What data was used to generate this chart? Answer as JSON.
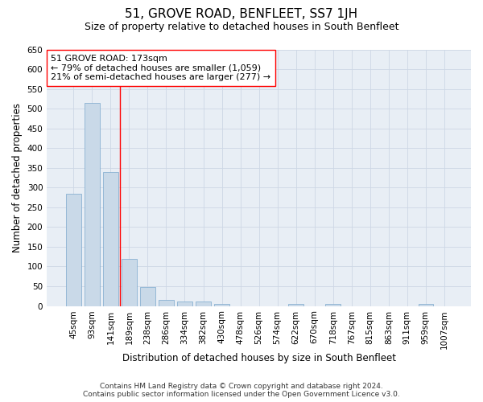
{
  "title": "51, GROVE ROAD, BENFLEET, SS7 1JH",
  "subtitle": "Size of property relative to detached houses in South Benfleet",
  "xlabel": "Distribution of detached houses by size in South Benfleet",
  "ylabel": "Number of detached properties",
  "footer_line1": "Contains HM Land Registry data © Crown copyright and database right 2024.",
  "footer_line2": "Contains public sector information licensed under the Open Government Licence v3.0.",
  "annotation_line1": "51 GROVE ROAD: 173sqm",
  "annotation_line2": "← 79% of detached houses are smaller (1,059)",
  "annotation_line3": "21% of semi-detached houses are larger (277) →",
  "bar_labels": [
    "45sqm",
    "93sqm",
    "141sqm",
    "189sqm",
    "238sqm",
    "286sqm",
    "334sqm",
    "382sqm",
    "430sqm",
    "478sqm",
    "526sqm",
    "574sqm",
    "622sqm",
    "670sqm",
    "718sqm",
    "767sqm",
    "815sqm",
    "863sqm",
    "911sqm",
    "959sqm",
    "1007sqm"
  ],
  "bar_values": [
    285,
    515,
    340,
    120,
    48,
    16,
    11,
    11,
    6,
    0,
    0,
    0,
    6,
    0,
    6,
    0,
    0,
    0,
    0,
    6,
    0
  ],
  "bar_color": "#c9d9e8",
  "bar_edge_color": "#7aa8cc",
  "bar_width": 0.8,
  "ylim": [
    0,
    650
  ],
  "yticks": [
    0,
    50,
    100,
    150,
    200,
    250,
    300,
    350,
    400,
    450,
    500,
    550,
    600,
    650
  ],
  "vline_color": "red",
  "vline_x": 2.5,
  "annotation_box_edge_color": "red",
  "annotation_box_face_color": "white",
  "grid_color": "#cdd7e5",
  "bg_color": "#e8eef5",
  "title_fontsize": 11,
  "subtitle_fontsize": 9,
  "axis_label_fontsize": 8.5,
  "tick_fontsize": 7.5,
  "annotation_fontsize": 8,
  "footer_fontsize": 6.5
}
